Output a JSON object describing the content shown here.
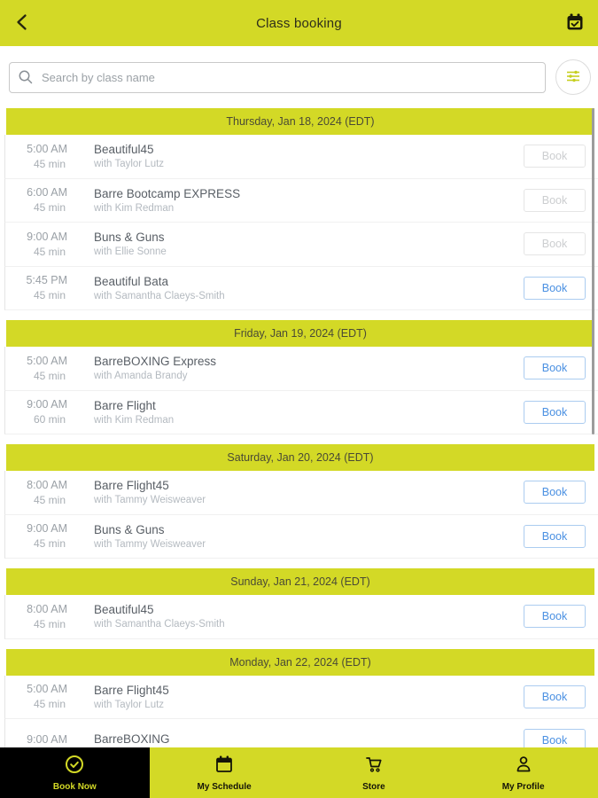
{
  "header": {
    "title": "Class booking",
    "back_icon": "back-chevron-icon",
    "right_icon": "calendar-check-icon"
  },
  "search": {
    "placeholder": "Search by class name",
    "value": "",
    "icon": "search-icon",
    "filter_icon": "filter-sliders-icon"
  },
  "colors": {
    "accent": "#d3d926",
    "book_blue": "#4a90e2",
    "nav_active_bg": "#000000"
  },
  "days": [
    {
      "date": "Thursday, Jan 18, 2024 (EDT)",
      "classes": [
        {
          "time": "5:00 AM",
          "duration": "45 min",
          "name": "Beautiful45",
          "instructor": "with Taylor Lutz",
          "book_label": "Book",
          "enabled": false
        },
        {
          "time": "6:00 AM",
          "duration": "45 min",
          "name": "Barre Bootcamp EXPRESS",
          "instructor": "with Kim Redman",
          "book_label": "Book",
          "enabled": false
        },
        {
          "time": "9:00 AM",
          "duration": "45 min",
          "name": "Buns & Guns",
          "instructor": "with Ellie Sonne",
          "book_label": "Book",
          "enabled": false
        },
        {
          "time": "5:45 PM",
          "duration": "45 min",
          "name": "Beautiful Bata",
          "instructor": "with Samantha Claeys-Smith",
          "book_label": "Book",
          "enabled": true
        }
      ]
    },
    {
      "date": "Friday, Jan 19, 2024 (EDT)",
      "classes": [
        {
          "time": "5:00 AM",
          "duration": "45 min",
          "name": "BarreBOXING Express",
          "instructor": "with Amanda Brandy",
          "book_label": "Book",
          "enabled": true
        },
        {
          "time": "9:00 AM",
          "duration": "60 min",
          "name": "Barre Flight",
          "instructor": "with Kim Redman",
          "book_label": "Book",
          "enabled": true
        }
      ]
    },
    {
      "date": "Saturday, Jan 20, 2024 (EDT)",
      "classes": [
        {
          "time": "8:00 AM",
          "duration": "45 min",
          "name": "Barre Flight45",
          "instructor": "with Tammy Weisweaver",
          "book_label": "Book",
          "enabled": true
        },
        {
          "time": "9:00 AM",
          "duration": "45 min",
          "name": "Buns & Guns",
          "instructor": "with Tammy Weisweaver",
          "book_label": "Book",
          "enabled": true
        }
      ]
    },
    {
      "date": "Sunday, Jan 21, 2024 (EDT)",
      "classes": [
        {
          "time": "8:00 AM",
          "duration": "45 min",
          "name": "Beautiful45",
          "instructor": "with Samantha Claeys-Smith",
          "book_label": "Book",
          "enabled": true
        }
      ]
    },
    {
      "date": "Monday, Jan 22, 2024 (EDT)",
      "classes": [
        {
          "time": "5:00 AM",
          "duration": "45 min",
          "name": "Barre Flight45",
          "instructor": "with Taylor Lutz",
          "book_label": "Book",
          "enabled": true
        },
        {
          "time": "9:00 AM",
          "duration": "",
          "name": "BarreBOXING",
          "instructor": "",
          "book_label": "Book",
          "enabled": true
        }
      ]
    }
  ],
  "nav": {
    "items": [
      {
        "label": "Book Now",
        "icon": "check-circle-icon",
        "active": true
      },
      {
        "label": "My Schedule",
        "icon": "calendar-icon",
        "active": false
      },
      {
        "label": "Store",
        "icon": "cart-icon",
        "active": false
      },
      {
        "label": "My Profile",
        "icon": "person-icon",
        "active": false
      }
    ]
  }
}
